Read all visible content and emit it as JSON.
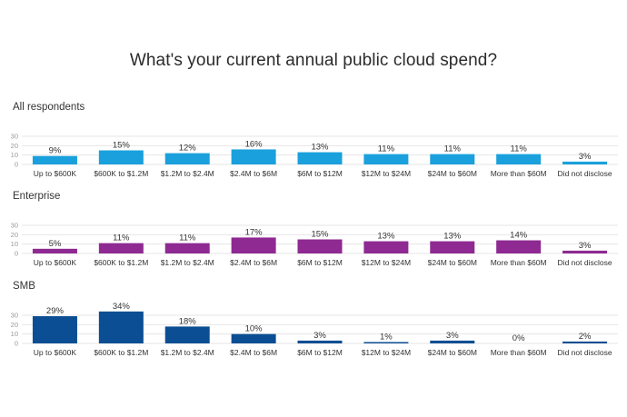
{
  "title": "What's your current annual public cloud spend?",
  "chart_data": {
    "type": "bar",
    "title": "What's your current annual public cloud spend?",
    "categories": [
      "Up to $600K",
      "$600K to $1.2M",
      "$1.2M to $2.4M",
      "$2.4M to $6M",
      "$6M to $12M",
      "$12M to $24M",
      "$24M to $60M",
      "More than $60M",
      "Did not disclose"
    ],
    "yticks": [
      "0",
      "10",
      "20",
      "30"
    ],
    "ylim": [
      0,
      35
    ],
    "grid": true,
    "value_suffix": "%",
    "panels": [
      {
        "name": "All respondents",
        "color": "#1aa0dc",
        "values": [
          9,
          15,
          12,
          16,
          13,
          11,
          11,
          11,
          3
        ]
      },
      {
        "name": "Enterprise",
        "color": "#8e2a91",
        "values": [
          5,
          11,
          11,
          17,
          15,
          13,
          13,
          14,
          3
        ]
      },
      {
        "name": "SMB",
        "color": "#0b4e93",
        "values": [
          29,
          34,
          18,
          10,
          3,
          1,
          3,
          0,
          2
        ]
      }
    ]
  }
}
